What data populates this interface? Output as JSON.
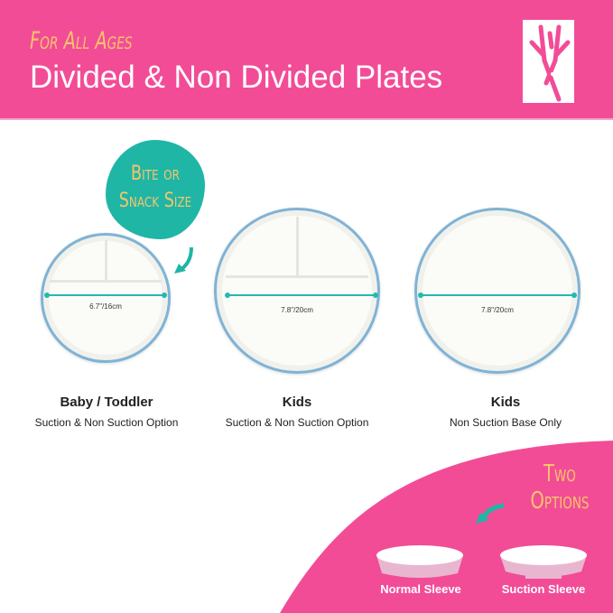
{
  "header": {
    "tagline": "For All Ages",
    "title": "Divided & Non Divided Plates",
    "logo": "deer-antler-logo",
    "registered": "®"
  },
  "badge": {
    "line1": "Bite or",
    "line2": "Snack Size"
  },
  "plates": [
    {
      "size": "6.7\"/16cm",
      "name": "Baby / Toddler",
      "option": "Suction & Non Suction Option",
      "divided": true
    },
    {
      "size": "7.8\"/20cm",
      "name": "Kids",
      "option": "Suction & Non Suction Option",
      "divided": true
    },
    {
      "size": "7.8\"/20cm",
      "name": "Kids",
      "option": "Non Suction Base Only",
      "divided": false
    }
  ],
  "options": {
    "line1": "Two",
    "line2": "Options",
    "normal": "Normal Sleeve",
    "suction": "Suction Sleeve"
  },
  "colors": {
    "pink": "#f24c97",
    "yellow": "#f8c46a",
    "teal": "#1fb6a6",
    "rim": "#7fb3d6"
  }
}
